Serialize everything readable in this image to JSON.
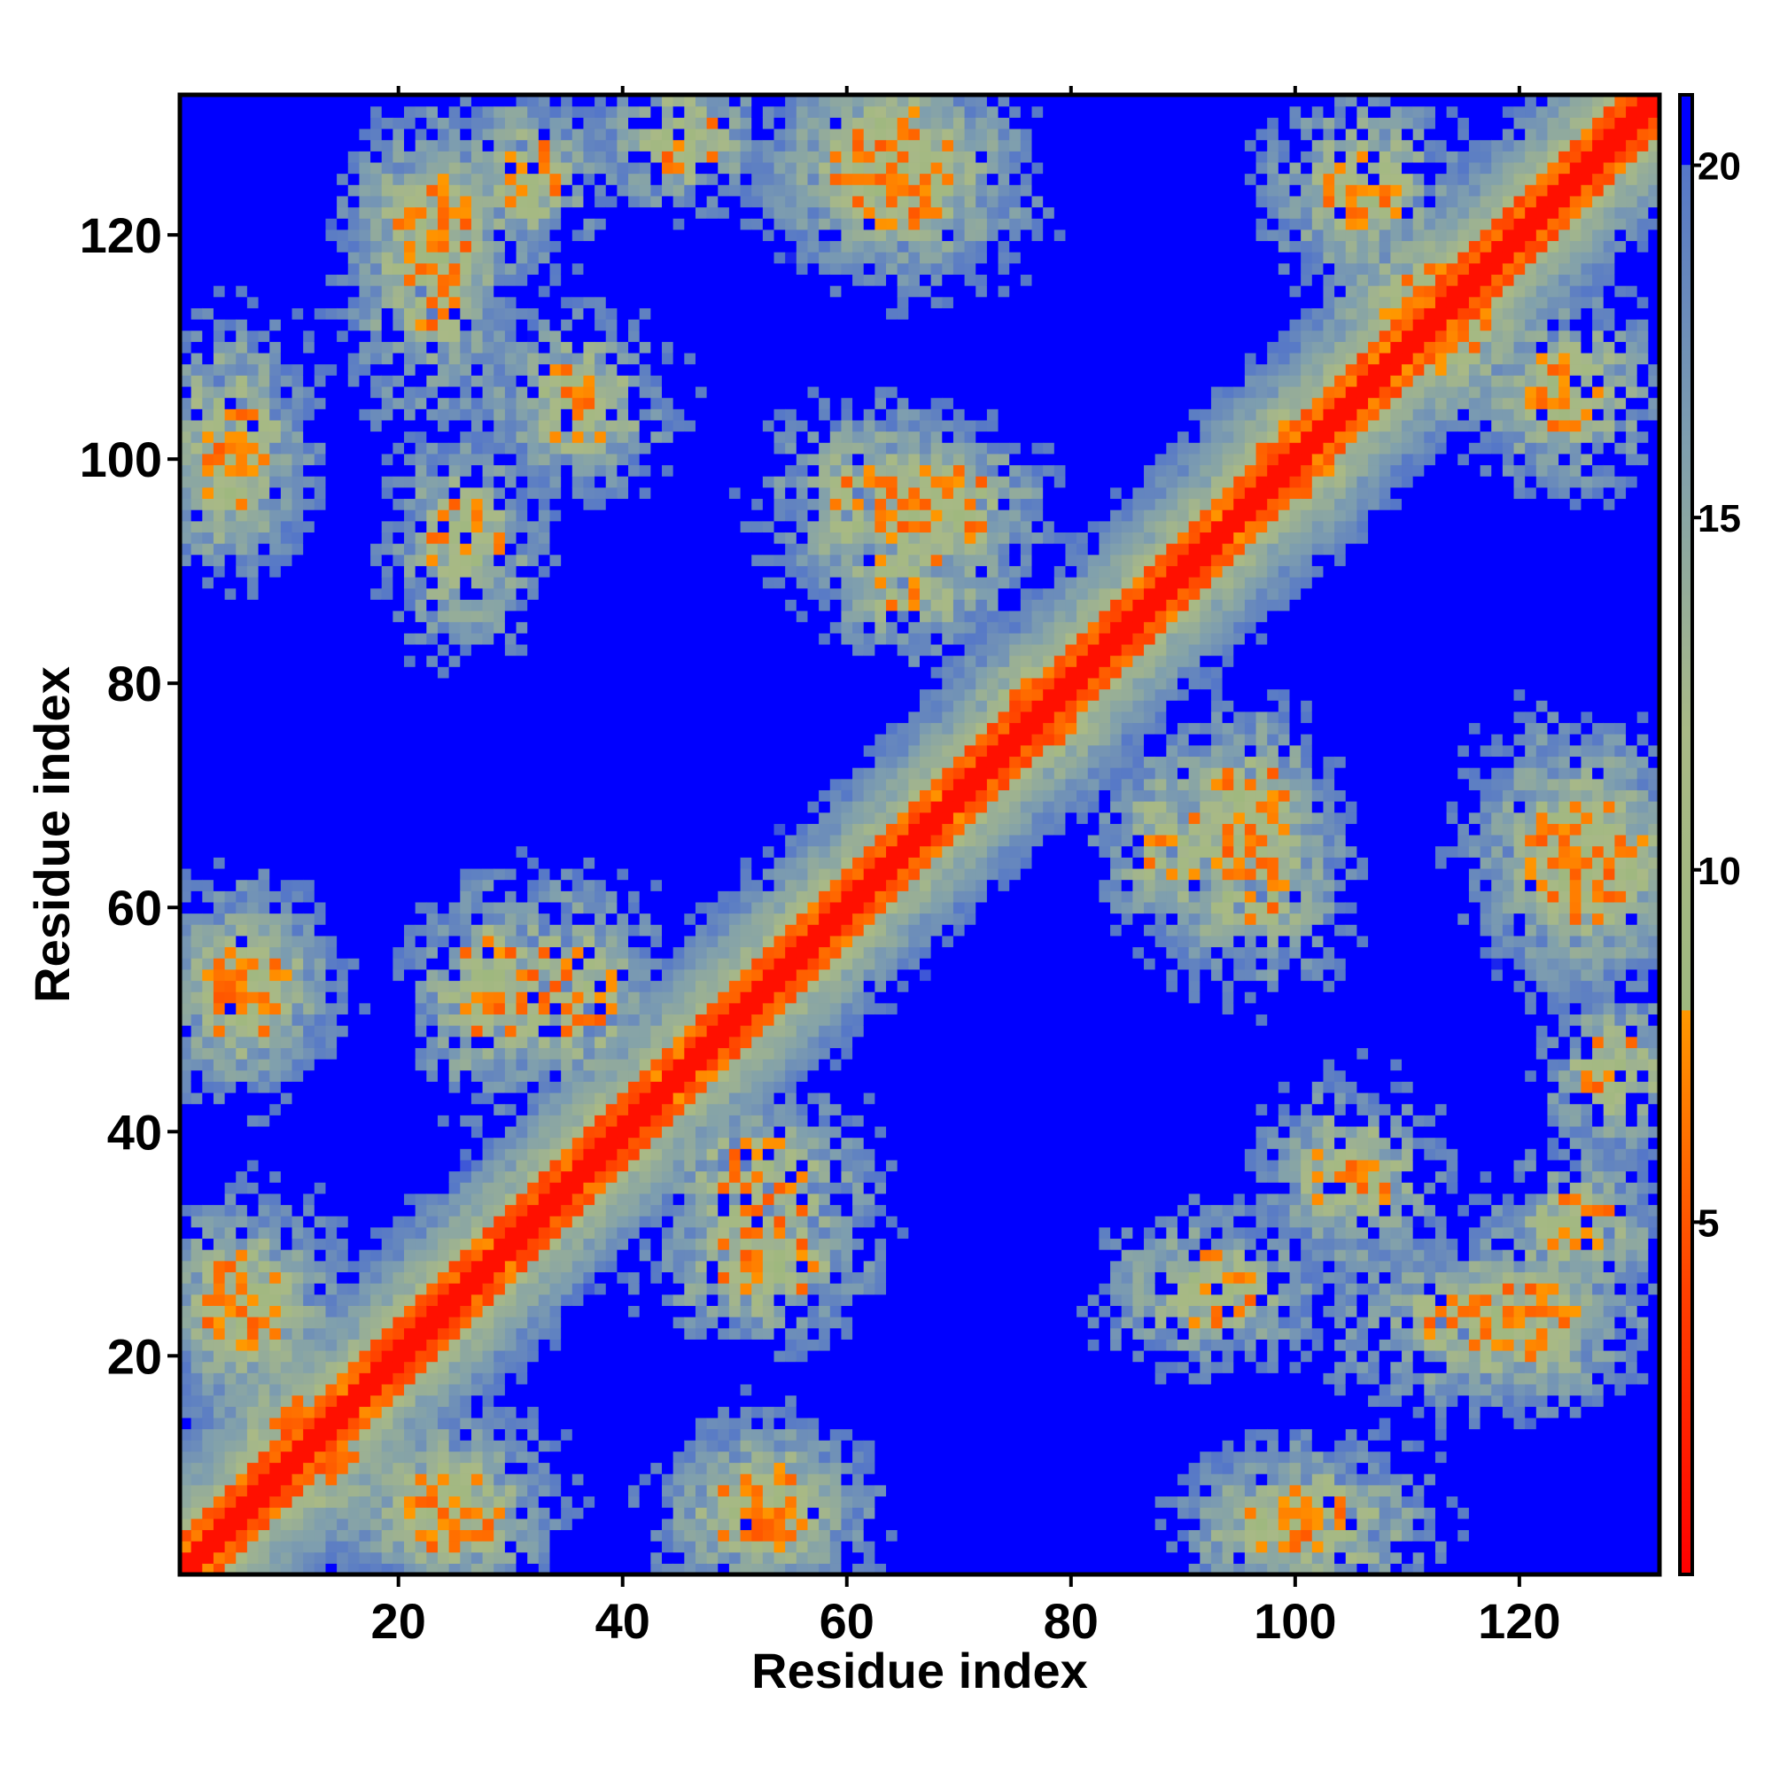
{
  "chart_data": {
    "type": "heatmap",
    "title": "",
    "xlabel": "Residue index",
    "ylabel": "Residue index",
    "n_residues": 132,
    "xlim": [
      1,
      132
    ],
    "ylim": [
      1,
      132
    ],
    "xticks": [
      20,
      40,
      60,
      80,
      100,
      120
    ],
    "yticks": [
      20,
      40,
      60,
      80,
      100,
      120
    ],
    "colorbar": {
      "range": [
        0,
        21
      ],
      "ticks": [
        5,
        10,
        15,
        20
      ],
      "stops": [
        {
          "value": 0,
          "color": "#ff0000"
        },
        {
          "value": 4,
          "color": "#ff4000"
        },
        {
          "value": 8,
          "color": "#ff9900"
        },
        {
          "value": 8.01,
          "color": "#9fb87f"
        },
        {
          "value": 12,
          "color": "#a9b986"
        },
        {
          "value": 16,
          "color": "#7f9fae"
        },
        {
          "value": 20,
          "color": "#5577c8"
        },
        {
          "value": 20.01,
          "color": "#0000ff"
        },
        {
          "value": 21,
          "color": "#0000ff"
        }
      ]
    },
    "cap_value": 21,
    "contact_regions": [
      {
        "name": "diagonal",
        "kind": "diagonal"
      },
      {
        "kind": "band",
        "i": [
          1,
          12
        ],
        "j": [
          18,
          32
        ]
      },
      {
        "kind": "band",
        "i": [
          5,
          20
        ],
        "j": [
          5,
          20
        ]
      },
      {
        "kind": "band",
        "i": [
          18,
          30
        ],
        "j": [
          1,
          12
        ]
      },
      {
        "kind": "band",
        "i": [
          2,
          10
        ],
        "j": [
          45,
          60
        ]
      },
      {
        "kind": "band",
        "i": [
          2,
          8
        ],
        "j": [
          92,
          105
        ]
      },
      {
        "kind": "band",
        "i": [
          18,
          28
        ],
        "j": [
          105,
          130
        ]
      },
      {
        "kind": "band",
        "i": [
          22,
          30
        ],
        "j": [
          85,
          100
        ]
      },
      {
        "kind": "band",
        "i": [
          24,
          32
        ],
        "j": [
          45,
          60
        ]
      },
      {
        "kind": "band",
        "i": [
          45,
          60
        ],
        "j": [
          28,
          42
        ]
      },
      {
        "kind": "band",
        "i": [
          48,
          58
        ],
        "j": [
          1,
          12
        ]
      },
      {
        "kind": "band",
        "i": [
          55,
          70
        ],
        "j": [
          90,
          102
        ]
      },
      {
        "kind": "band",
        "i": [
          55,
          75
        ],
        "j": [
          118,
          132
        ]
      },
      {
        "kind": "band",
        "i": [
          63,
          70
        ],
        "j": [
          93,
          100
        ]
      },
      {
        "kind": "band",
        "i": [
          72,
          82
        ],
        "j": [
          72,
          82
        ]
      },
      {
        "kind": "band",
        "i": [
          85,
          95
        ],
        "j": [
          60,
          72
        ]
      },
      {
        "kind": "band",
        "i": [
          92,
          100
        ],
        "j": [
          65,
          75
        ]
      },
      {
        "kind": "band",
        "i": [
          95,
          110
        ],
        "j": [
          1,
          10
        ]
      },
      {
        "kind": "band",
        "i": [
          95,
          105
        ],
        "j": [
          95,
          105
        ]
      },
      {
        "kind": "band",
        "i": [
          100,
          110
        ],
        "j": [
          30,
          42
        ]
      },
      {
        "kind": "band",
        "i": [
          105,
          120
        ],
        "j": [
          105,
          120
        ]
      },
      {
        "kind": "band",
        "i": [
          118,
          126
        ],
        "j": [
          18,
          28
        ]
      },
      {
        "kind": "band",
        "i": [
          118,
          130
        ],
        "j": [
          100,
          112
        ]
      },
      {
        "kind": "band",
        "i": [
          120,
          130
        ],
        "j": [
          28,
          35
        ]
      },
      {
        "kind": "band",
        "i": [
          120,
          132
        ],
        "j": [
          55,
          72
        ]
      },
      {
        "kind": "band",
        "i": [
          125,
          132
        ],
        "j": [
          40,
          50
        ]
      },
      {
        "kind": "band",
        "i": [
          128,
          132
        ],
        "j": [
          60,
          67
        ]
      }
    ]
  }
}
